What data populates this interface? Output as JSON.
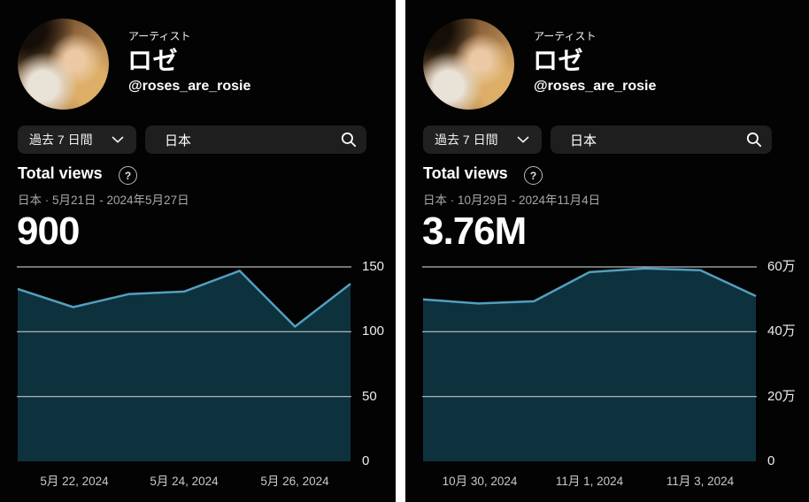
{
  "theme": {
    "panel_bg": "#030303",
    "divider": "#ffffff",
    "chart_line": "#539fbe",
    "chart_fill": "#0e313e",
    "grid_color": "#ffffff",
    "pill_bg": "#212121",
    "subtitle_color": "#a7a7a7"
  },
  "icons": {
    "help_icon": "?",
    "chevron_down_icon": "v",
    "search_icon": "magnifier"
  },
  "panels": [
    {
      "artist_label": "アーティスト",
      "artist_name": "ロゼ",
      "artist_handle": "@roses_are_rosie",
      "date_range_button": "過去 7 日間",
      "search_value": "日本",
      "metric_title": "Total views",
      "metric_subtitle": "日本 · 5月21日 - 2024年5月27日",
      "metric_value": "900",
      "chart_data": {
        "type": "area",
        "title": "Total views (日本, 5月21日 - 2024年5月27日)",
        "x": [
          "5月21日",
          "5月22日",
          "5月23日",
          "5月24日",
          "5月25日",
          "5月26日",
          "5月27日"
        ],
        "values": [
          133,
          119,
          129,
          131,
          147,
          104,
          137
        ],
        "total": 900,
        "ylim": [
          0,
          150
        ],
        "grid": true,
        "legend": "none",
        "y_ticks": [
          {
            "label": "150",
            "value": 150
          },
          {
            "label": "100",
            "value": 100
          },
          {
            "label": "50",
            "value": 50
          },
          {
            "label": "0",
            "value": 0
          }
        ],
        "x_tick_labels": [
          {
            "label": "5月 22, 2024",
            "index": 1
          },
          {
            "label": "5月 24, 2024",
            "index": 3
          },
          {
            "label": "5月 26, 2024",
            "index": 5
          }
        ]
      }
    },
    {
      "artist_label": "アーティスト",
      "artist_name": "ロゼ",
      "artist_handle": "@roses_are_rosie",
      "date_range_button": "過去 7 日間",
      "search_value": "日本",
      "metric_title": "Total views",
      "metric_subtitle": "日本 · 10月29日 - 2024年11月4日",
      "metric_value": "3.76M",
      "chart_data": {
        "type": "area",
        "title": "Total views (日本, 10月29日 - 2024年11月4日)",
        "x": [
          "10月29日",
          "10月30日",
          "10月31日",
          "11月1日",
          "11月2日",
          "11月3日",
          "11月4日"
        ],
        "values": [
          500000,
          487000,
          494000,
          584000,
          595000,
          590000,
          510000
        ],
        "total": 3760000,
        "ylim": [
          0,
          600000
        ],
        "grid": true,
        "legend": "none",
        "y_ticks": [
          {
            "label": "60万",
            "value": 600000
          },
          {
            "label": "40万",
            "value": 400000
          },
          {
            "label": "20万",
            "value": 200000
          },
          {
            "label": "0",
            "value": 0
          }
        ],
        "x_tick_labels": [
          {
            "label": "10月 30, 2024",
            "index": 1
          },
          {
            "label": "11月 1, 2024",
            "index": 3
          },
          {
            "label": "11月 3, 2024",
            "index": 5
          }
        ]
      }
    }
  ]
}
